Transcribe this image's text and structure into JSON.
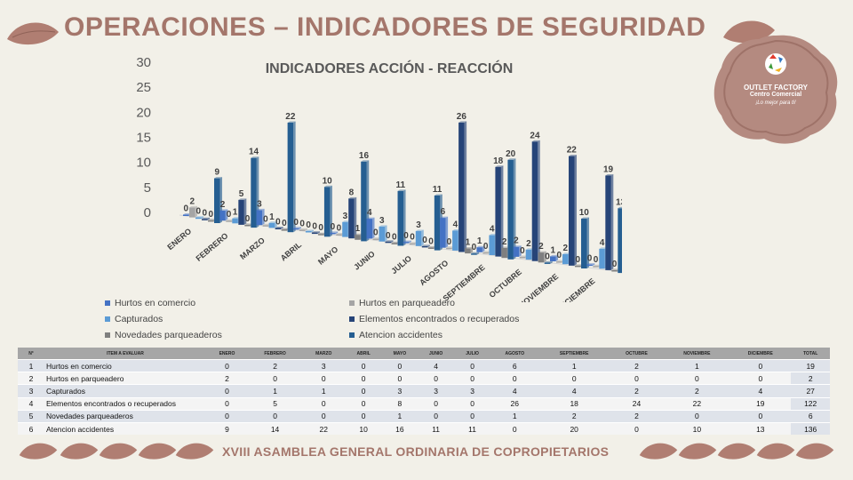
{
  "header": {
    "title": "OPERACIONES – INDICADORES DE SEGURIDAD"
  },
  "logo": {
    "line1": "OUTLET FACTORY",
    "line2": "Centro Comercial",
    "line3": "¡Lo mejor para ti!"
  },
  "footer": {
    "text": "XVIII ASAMBLEA GENERAL ORDINARIA DE COPROPIETARIOS"
  },
  "colors": {
    "title": "#a4766b",
    "leaf": "#b07e72",
    "logo_bg": "#b48a80"
  },
  "chart_data": {
    "type": "bar",
    "title": "INDICADORES ACCIÓN - REACCIÓN",
    "categories": [
      "ENERO",
      "FEBRERO",
      "MARZO",
      "ABRIL",
      "MAYO",
      "JUNIO",
      "JULIO",
      "AGOSTO",
      "SEPTIEMBRE",
      "OCTUBRE",
      "NOVIEMBRE",
      "DICIEMBRE"
    ],
    "y_ticks": [
      "30",
      "25",
      "20",
      "15",
      "10",
      "5",
      "0"
    ],
    "ylim": [
      0,
      30
    ],
    "series": [
      {
        "name": "Hurtos en comercio",
        "color": "#4472c4",
        "values": [
          0,
          2,
          3,
          0,
          0,
          4,
          0,
          6,
          1,
          2,
          1,
          0
        ]
      },
      {
        "name": "Hurtos en parqueadero",
        "color": "#a5a5a5",
        "values": [
          2,
          0,
          0,
          0,
          0,
          0,
          0,
          0,
          0,
          0,
          0,
          0
        ]
      },
      {
        "name": "Capturados",
        "color": "#5b9bd5",
        "values": [
          0,
          1,
          1,
          0,
          3,
          3,
          3,
          4,
          4,
          2,
          2,
          4
        ]
      },
      {
        "name": "Elementos encontrados o recuperados",
        "color": "#264478",
        "values": [
          0,
          5,
          0,
          0,
          8,
          0,
          0,
          26,
          18,
          24,
          22,
          19
        ]
      },
      {
        "name": "Novedades parqueaderos",
        "color": "#7f7f7f",
        "values": [
          0,
          0,
          0,
          0,
          1,
          0,
          0,
          1,
          2,
          2,
          0,
          0
        ]
      },
      {
        "name": "Atencion accidentes",
        "color": "#255e91",
        "values": [
          9,
          14,
          22,
          10,
          16,
          11,
          11,
          0,
          20,
          0,
          10,
          13
        ]
      }
    ]
  },
  "table": {
    "headers": [
      "N°",
      "ITEM A EVALUAR",
      "ENERO",
      "FEBRERO",
      "MARZO",
      "ABRIL",
      "MAYO",
      "JUNIO",
      "JULIO",
      "AGOSTO",
      "SEPTIEMBRE",
      "OCTUBRE",
      "NOVIEMBRE",
      "DICIEMBRE",
      "TOTAL"
    ],
    "rows": [
      [
        "1",
        "Hurtos en comercio",
        "0",
        "2",
        "3",
        "0",
        "0",
        "4",
        "0",
        "6",
        "1",
        "2",
        "1",
        "0",
        "19"
      ],
      [
        "2",
        "Hurtos en parqueadero",
        "2",
        "0",
        "0",
        "0",
        "0",
        "0",
        "0",
        "0",
        "0",
        "0",
        "0",
        "0",
        "2"
      ],
      [
        "3",
        "Capturados",
        "0",
        "1",
        "1",
        "0",
        "3",
        "3",
        "3",
        "4",
        "4",
        "2",
        "2",
        "4",
        "27"
      ],
      [
        "4",
        "Elementos encontrados o recuperados",
        "0",
        "5",
        "0",
        "0",
        "8",
        "0",
        "0",
        "26",
        "18",
        "24",
        "22",
        "19",
        "122"
      ],
      [
        "5",
        "Novedades parqueaderos",
        "0",
        "0",
        "0",
        "0",
        "1",
        "0",
        "0",
        "1",
        "2",
        "2",
        "0",
        "0",
        "6"
      ],
      [
        "6",
        "Atencion accidentes",
        "9",
        "14",
        "22",
        "10",
        "16",
        "11",
        "11",
        "0",
        "20",
        "0",
        "10",
        "13",
        "136"
      ]
    ]
  }
}
